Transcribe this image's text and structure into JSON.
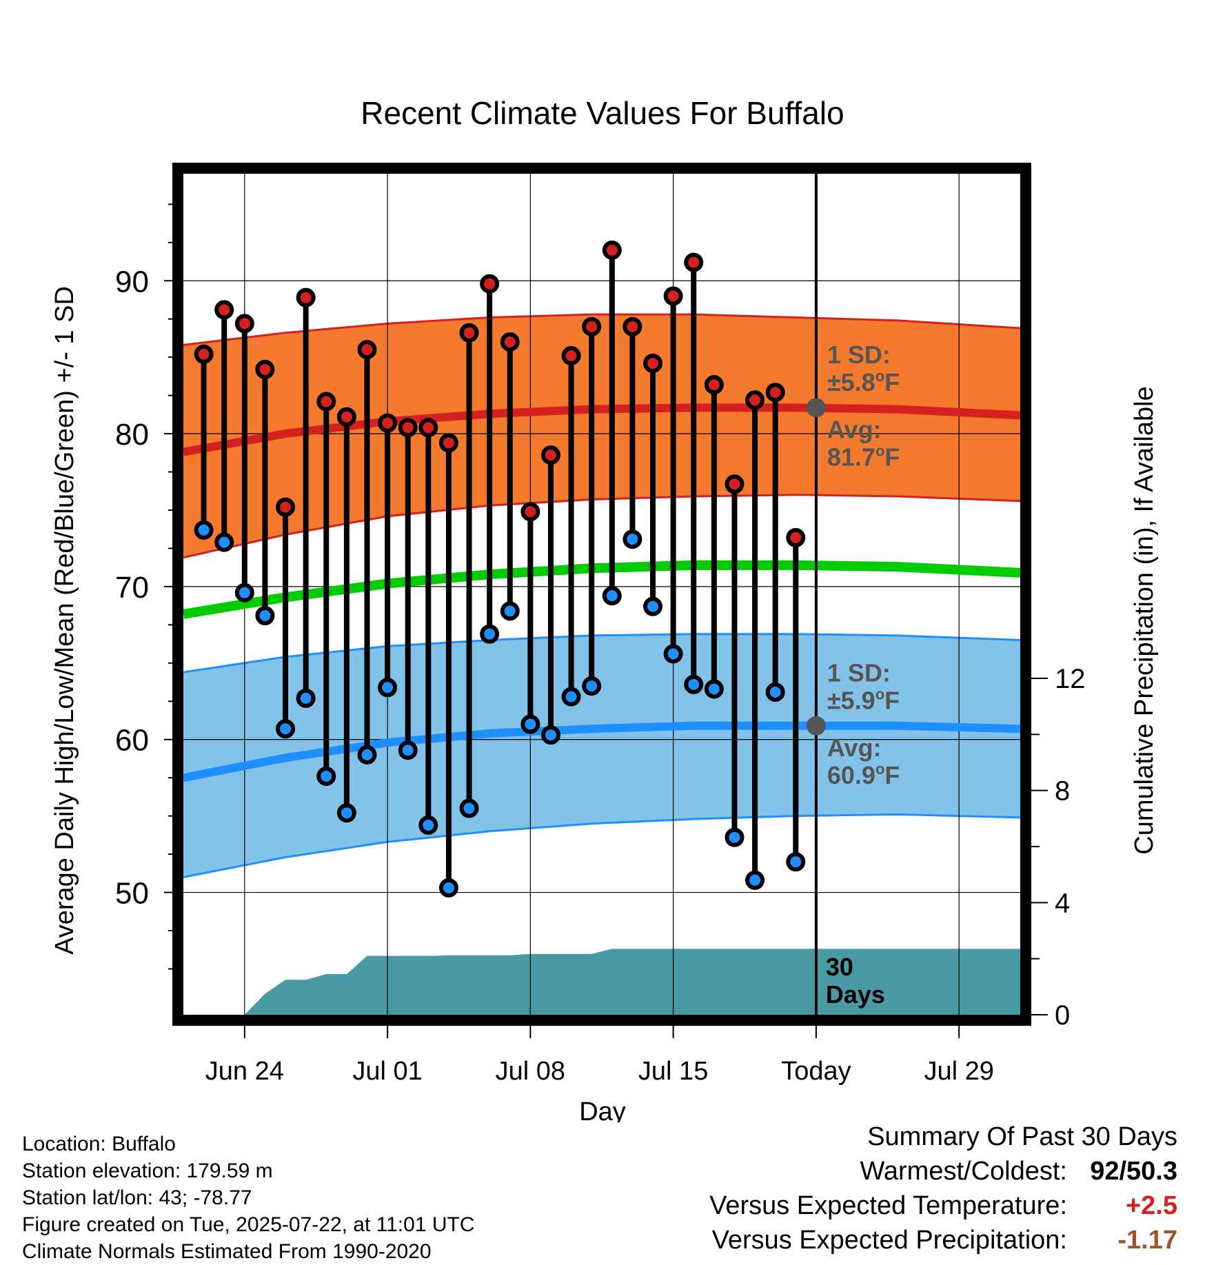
{
  "chart_data": {
    "type": "line",
    "title": "Recent Climate Values For Buffalo",
    "xlabel": "Day",
    "ylabel": "Average Daily High/Low/Mean (Red/Blue/Green) +/- 1 SD",
    "y2label": "Cumulative Precipitation (in), If Available",
    "ylim": [
      42,
      97
    ],
    "y2lim": [
      0,
      30
    ],
    "y_ticks": [
      50,
      60,
      70,
      80,
      90
    ],
    "y2_ticks": [
      0,
      4,
      8,
      12
    ],
    "x_ticks": [
      {
        "label": "Jun 24",
        "date": "2025-06-24"
      },
      {
        "label": "Jul 01",
        "date": "2025-07-01"
      },
      {
        "label": "Jul 08",
        "date": "2025-07-08"
      },
      {
        "label": "Jul 15",
        "date": "2025-07-15"
      },
      {
        "label": "Today",
        "date": "2025-07-22"
      },
      {
        "label": "Jul 29",
        "date": "2025-07-29"
      }
    ],
    "xlim": [
      "2025-06-21",
      "2025-08-01"
    ],
    "today": "2025-07-22",
    "grid": true,
    "colors": {
      "high": "#d42020",
      "low": "#1e8fff",
      "mean": "#00cc00",
      "high_band": "#f47a2e",
      "low_band": "#83c2e9",
      "precip": "#4a9aa5",
      "annotation": "#555555"
    },
    "normals": {
      "dates": [
        "2025-06-21",
        "2025-06-26",
        "2025-07-01",
        "2025-07-06",
        "2025-07-11",
        "2025-07-16",
        "2025-07-21",
        "2025-07-26",
        "2025-08-01"
      ],
      "high_avg": [
        78.8,
        80.0,
        80.8,
        81.3,
        81.6,
        81.7,
        81.7,
        81.6,
        81.2
      ],
      "high_upper": [
        85.8,
        86.6,
        87.2,
        87.6,
        87.8,
        87.8,
        87.6,
        87.4,
        86.9
      ],
      "high_lower": [
        71.9,
        73.4,
        74.6,
        75.3,
        75.7,
        75.9,
        76.0,
        75.9,
        75.6
      ],
      "mean_avg": [
        68.2,
        69.3,
        70.2,
        70.8,
        71.2,
        71.4,
        71.4,
        71.3,
        70.9
      ],
      "low_avg": [
        57.5,
        58.8,
        59.8,
        60.4,
        60.7,
        60.9,
        60.9,
        60.9,
        60.7
      ],
      "low_upper": [
        64.4,
        65.4,
        66.1,
        66.5,
        66.8,
        66.9,
        66.9,
        66.8,
        66.5
      ],
      "low_lower": [
        51.0,
        52.3,
        53.3,
        54.0,
        54.5,
        54.8,
        55.0,
        55.1,
        54.9
      ]
    },
    "observations": {
      "dates": [
        "2025-06-22",
        "2025-06-23",
        "2025-06-24",
        "2025-06-25",
        "2025-06-26",
        "2025-06-27",
        "2025-06-28",
        "2025-06-29",
        "2025-06-30",
        "2025-07-01",
        "2025-07-02",
        "2025-07-03",
        "2025-07-04",
        "2025-07-05",
        "2025-07-06",
        "2025-07-07",
        "2025-07-08",
        "2025-07-09",
        "2025-07-10",
        "2025-07-11",
        "2025-07-12",
        "2025-07-13",
        "2025-07-14",
        "2025-07-15",
        "2025-07-16",
        "2025-07-17",
        "2025-07-18",
        "2025-07-19",
        "2025-07-20",
        "2025-07-21"
      ],
      "high": [
        85.2,
        88.1,
        87.2,
        84.2,
        75.2,
        88.9,
        82.1,
        81.1,
        85.5,
        80.7,
        80.4,
        80.4,
        79.4,
        86.6,
        89.8,
        86.0,
        74.9,
        78.6,
        85.1,
        87.0,
        92.0,
        87.0,
        84.6,
        89.0,
        91.2,
        83.2,
        76.7,
        82.2,
        82.7,
        73.2
      ],
      "low": [
        73.7,
        72.9,
        69.6,
        68.1,
        60.7,
        62.7,
        57.6,
        55.2,
        59.0,
        63.4,
        59.3,
        54.4,
        50.3,
        55.5,
        66.9,
        68.4,
        61.0,
        60.3,
        62.8,
        63.5,
        69.4,
        73.1,
        68.7,
        65.6,
        63.6,
        63.3,
        53.6,
        50.8,
        63.1,
        52.0
      ]
    },
    "precipitation": {
      "dates": [
        "2025-06-24",
        "2025-06-25",
        "2025-06-26",
        "2025-06-27",
        "2025-06-28",
        "2025-06-29",
        "2025-06-30",
        "2025-07-01",
        "2025-07-02",
        "2025-07-03",
        "2025-07-04",
        "2025-07-05",
        "2025-07-06",
        "2025-07-07",
        "2025-07-08",
        "2025-07-09",
        "2025-07-10",
        "2025-07-11",
        "2025-07-12",
        "2025-07-13",
        "2025-07-14",
        "2025-07-15",
        "2025-07-16",
        "2025-07-17",
        "2025-07-18",
        "2025-07-19",
        "2025-07-20",
        "2025-07-21",
        "2025-07-22",
        "2025-08-01"
      ],
      "cumulative": [
        0,
        0.75,
        1.25,
        1.25,
        1.45,
        1.45,
        2.1,
        2.1,
        2.1,
        2.1,
        2.12,
        2.12,
        2.12,
        2.12,
        2.17,
        2.17,
        2.17,
        2.17,
        2.35,
        2.35,
        2.35,
        2.35,
        2.35,
        2.35,
        2.35,
        2.35,
        2.35,
        2.35,
        2.35,
        2.35
      ],
      "label_value": "30",
      "label_unit": "Days"
    },
    "annotations": {
      "high_sd": {
        "line1": "1 SD:",
        "line2": "±5.8",
        "unit": "F"
      },
      "high_avg": {
        "line1": "Avg:",
        "line2": "81.7",
        "unit": "F"
      },
      "low_sd": {
        "line1": "1 SD:",
        "line2": "±5.9",
        "unit": "F"
      },
      "low_avg": {
        "line1": "Avg:",
        "line2": "60.9",
        "unit": "F"
      },
      "degree": "o"
    }
  },
  "station": {
    "location": "Location: Buffalo",
    "elevation": "Station elevation: 179.59 m",
    "latlon": "Station lat/lon: 43; -78.77",
    "created": "Figure created on Tue, 2025-07-22, at 11:01 UTC",
    "normals": "Climate Normals Estimated From 1990-2020"
  },
  "summary": {
    "title": "Summary Of Past 30 Days",
    "warmest_label": "Warmest/Coldest:",
    "warmest_value": "92/50.3",
    "temp_label": "Versus Expected Temperature:",
    "temp_value": "+2.5",
    "temp_color": "#d42020",
    "precip_label": "Versus Expected Precipitation:",
    "precip_value": "-1.17",
    "precip_color": "#a0522d"
  }
}
